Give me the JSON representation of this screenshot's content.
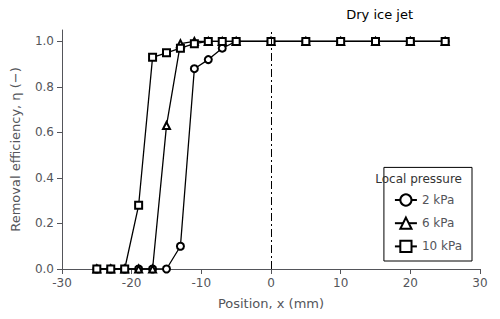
{
  "chart_data": {
    "type": "line",
    "x": [
      -25,
      -23,
      -21,
      -19,
      -17,
      -15,
      -13,
      -11,
      -9,
      -7,
      -5,
      0,
      5,
      10,
      15,
      20,
      25
    ],
    "series": [
      {
        "name": "2 kPa",
        "color": "black",
        "marker": "circle",
        "values": [
          0.0,
          0.0,
          0.0,
          0.0,
          0.0,
          0.0,
          0.1,
          0.88,
          0.92,
          0.97,
          1.0,
          1.0,
          1.0,
          1.0,
          1.0,
          1.0,
          1.0
        ]
      },
      {
        "name": "6 kPa",
        "color": "black",
        "marker": "triangle",
        "values": [
          0.0,
          0.0,
          0.0,
          0.0,
          0.0,
          0.63,
          0.99,
          1.0,
          1.0,
          1.0,
          1.0,
          1.0,
          1.0,
          1.0,
          1.0,
          1.0,
          1.0
        ]
      },
      {
        "name": "10 kPa",
        "color": "black",
        "marker": "square",
        "values": [
          0.0,
          0.0,
          0.0,
          0.28,
          0.93,
          0.95,
          0.97,
          0.99,
          1.0,
          1.0,
          1.0,
          1.0,
          1.0,
          1.0,
          1.0,
          1.0,
          1.0
        ]
      }
    ],
    "xlabel": "Position, x (mm)",
    "ylabel": "Removal efficiency, η (−)",
    "annotation": "Dry ice jet",
    "legend_title": "Local pressure",
    "legend": "lower right",
    "vline": {
      "x": 0,
      "color": "black",
      "line_style": "dashdot"
    },
    "xlim": [
      -30,
      30
    ],
    "ylim": [
      0.0,
      1.05
    ],
    "xticks": [
      -30,
      -20,
      -10,
      0,
      10,
      20,
      30
    ],
    "yticks": [
      {
        "value": 0,
        "label": "0.0"
      },
      0.2,
      0.4,
      0.6,
      0.8,
      {
        "value": 1.0,
        "label": "1.0"
      }
    ],
    "grid": false
  }
}
